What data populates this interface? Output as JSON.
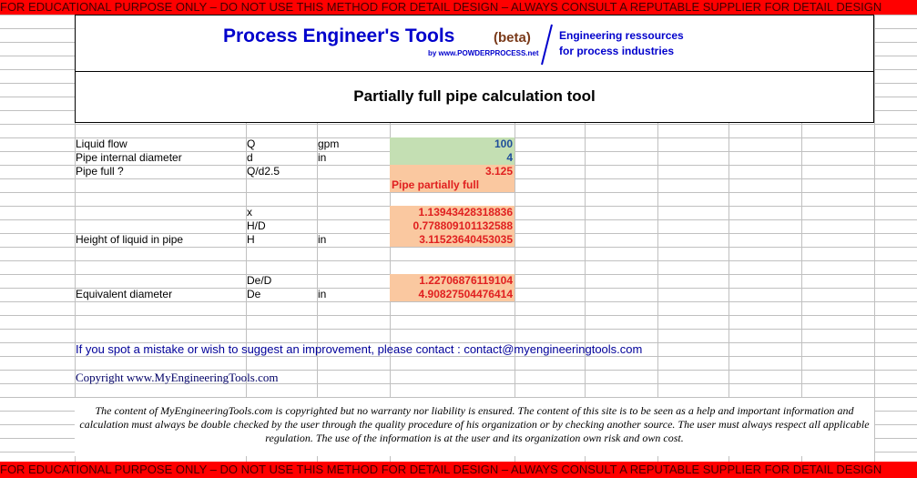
{
  "banner": "FOR EDUCATIONAL PURPOSE ONLY – DO NOT USE THIS METHOD FOR DETAIL DESIGN – ALWAYS CONSULT A REPUTABLE SUPPLIER FOR DETAIL DESIGN",
  "header": {
    "title": "Process Engineer's Tools",
    "beta": "(beta)",
    "by": "by www.POWDERPROCESS.net",
    "tagline": [
      "Engineering ressources",
      "for process industries"
    ]
  },
  "tool_title": "Partially full pipe calculation tool",
  "rows": [
    {
      "label": "Liquid flow",
      "symbol": "Q",
      "unit": "gpm",
      "value": "100",
      "kind": "input"
    },
    {
      "label": "Pipe internal diameter",
      "symbol": "d",
      "unit": "in",
      "value": "4",
      "kind": "input"
    },
    {
      "label": "Pipe full ?",
      "symbol": "Q/d2.5",
      "value": "3.125",
      "kind": "result"
    },
    {
      "value": "Pipe partially full",
      "kind": "status"
    },
    {
      "symbol": "x",
      "value": "1.13943428318836",
      "kind": "result"
    },
    {
      "symbol": "H/D",
      "value": "0.778809101132588",
      "kind": "result"
    },
    {
      "label": "Height of liquid in pipe",
      "symbol": "H",
      "unit": "in",
      "value": "3.11523640453035",
      "kind": "result"
    },
    {
      "symbol": "De/D",
      "value": "1.22706876119104",
      "kind": "result"
    },
    {
      "label": "Equivalent diameter",
      "symbol": "De",
      "unit": "in",
      "value": "4.90827504476414",
      "kind": "result"
    }
  ],
  "contact": "If you spot a mistake or wish to suggest an improvement, please contact : contact@myengineeringtools.com",
  "copyright": "Copyright www.MyEngineeringTools.com",
  "disclaimer": "The content of MyEngineeringTools.com is copyrighted but no warranty nor liability is ensured. The content of this site is to be seen as a help and important information and calculation must always be double checked by the user through the quality procedure of his organization or by checking another source. The user must always respect all applicable regulation. The use of the information is at the user and its organization own risk and own cost."
}
